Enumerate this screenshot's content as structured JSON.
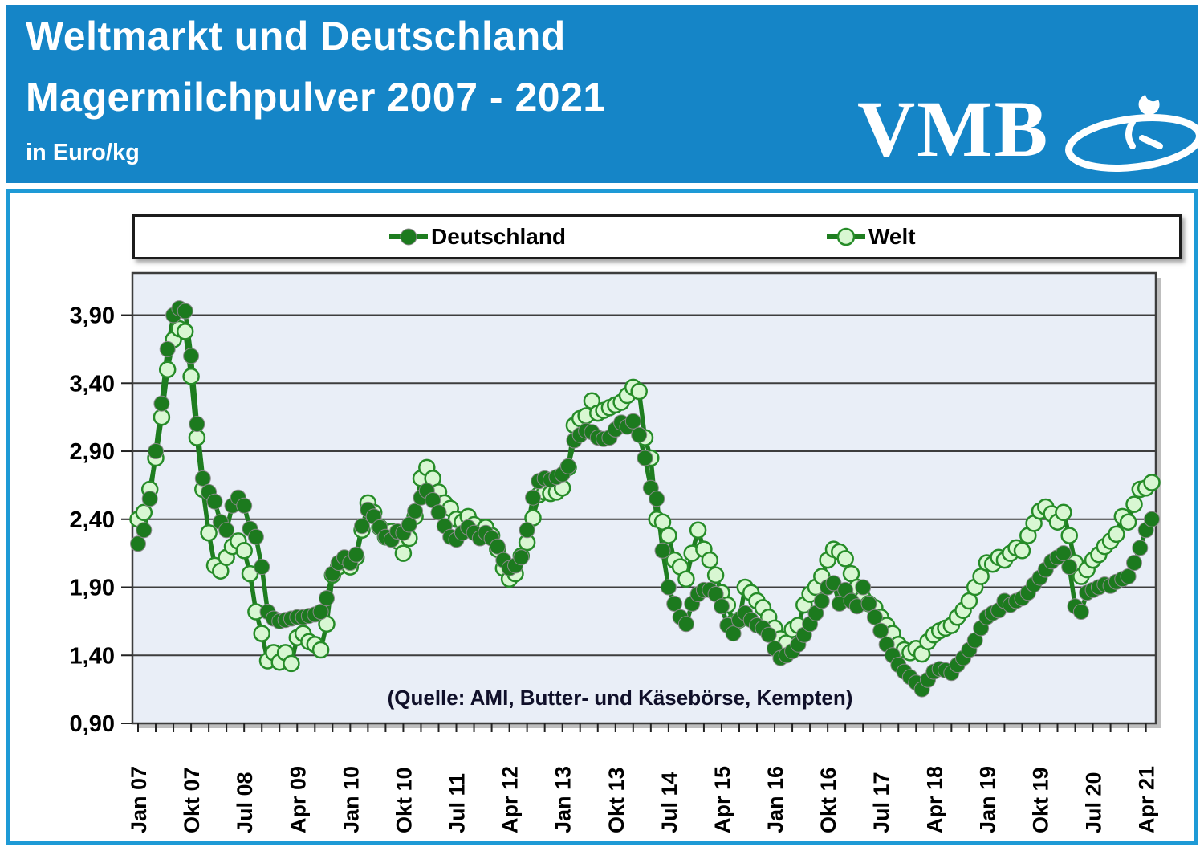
{
  "header": {
    "title_line1": "Weltmarkt und Deutschland",
    "title_line2": "Magermilchpulver 2007 - 2021",
    "unit_label": "in Euro/kg",
    "logo_text": "VMB",
    "header_color": "#1585c7",
    "frame_color": "#1e9ad6"
  },
  "legend": {
    "items": [
      {
        "label": "Deutschland",
        "marker": "filled-circle"
      },
      {
        "label": "Welt",
        "marker": "open-circle"
      }
    ]
  },
  "chart_data": {
    "type": "line",
    "title": "Weltmarkt und Deutschland Magermilchpulver 2007 - 2021",
    "ylabel": "Euro/kg",
    "source_note": "(Quelle: AMI, Butter- und Käsebörse, Kempten)",
    "grid": "horizontal",
    "legend_position": "top",
    "ylim": [
      0.9,
      4.21
    ],
    "yticks": [
      3.9,
      3.4,
      2.9,
      2.4,
      1.9,
      1.4,
      0.9
    ],
    "ytick_labels": [
      "3,90",
      "3,40",
      "2,90",
      "2,40",
      "1,90",
      "1,40",
      "0,90"
    ],
    "x_unit": "month",
    "x_start": "Jan 2007",
    "x_end": "Mai 2021",
    "xtick_label_every_months": 9,
    "minor_tick_every_months": 3,
    "xtick_labels": [
      "Jan 07",
      "Okt 07",
      "Jul 08",
      "Apr 09",
      "Jan 10",
      "Okt 10",
      "Jul 11",
      "Apr 12",
      "Jan 13",
      "Okt 13",
      "Jul 14",
      "Apr 15",
      "Jan 16",
      "Okt 16",
      "Jul 17",
      "Apr 18",
      "Jan 19",
      "Okt 19",
      "Jul 20",
      "Apr 21"
    ],
    "colors": {
      "line_green": "#1e7d20",
      "deutschland_fill": "#1c7a1e",
      "welt_fill": "#d8f7d2",
      "welt_stroke": "#268c28",
      "plot_bg": "#e9eef7",
      "gridline": "#3d3d3d"
    },
    "series": [
      {
        "name": "Deutschland",
        "marker": "filled-circle",
        "values": [
          2.22,
          2.32,
          2.55,
          2.9,
          3.25,
          3.65,
          3.9,
          3.95,
          3.93,
          3.6,
          3.1,
          2.7,
          2.6,
          2.53,
          2.38,
          2.32,
          2.5,
          2.56,
          2.5,
          2.33,
          2.27,
          2.05,
          1.72,
          1.67,
          1.65,
          1.66,
          1.67,
          1.68,
          1.68,
          1.69,
          1.7,
          1.72,
          1.82,
          2.0,
          2.08,
          2.12,
          2.08,
          2.14,
          2.35,
          2.47,
          2.42,
          2.34,
          2.27,
          2.25,
          2.31,
          2.3,
          2.36,
          2.46,
          2.56,
          2.61,
          2.54,
          2.45,
          2.35,
          2.27,
          2.25,
          2.3,
          2.34,
          2.3,
          2.26,
          2.3,
          2.26,
          2.2,
          2.1,
          2.04,
          2.06,
          2.12,
          2.32,
          2.56,
          2.68,
          2.7,
          2.69,
          2.71,
          2.73,
          2.79,
          2.98,
          3.02,
          3.05,
          3.04,
          3.0,
          2.99,
          3.0,
          3.06,
          3.11,
          3.08,
          3.12,
          3.02,
          2.85,
          2.63,
          2.55,
          2.17,
          1.9,
          1.78,
          1.68,
          1.63,
          1.78,
          1.85,
          1.88,
          1.88,
          1.85,
          1.76,
          1.62,
          1.56,
          1.66,
          1.71,
          1.66,
          1.62,
          1.6,
          1.55,
          1.45,
          1.38,
          1.4,
          1.43,
          1.48,
          1.55,
          1.63,
          1.71,
          1.8,
          1.9,
          1.93,
          1.78,
          1.88,
          1.8,
          1.76,
          1.9,
          1.78,
          1.68,
          1.58,
          1.48,
          1.4,
          1.33,
          1.28,
          1.24,
          1.2,
          1.15,
          1.22,
          1.28,
          1.3,
          1.29,
          1.27,
          1.33,
          1.38,
          1.44,
          1.51,
          1.6,
          1.68,
          1.71,
          1.73,
          1.8,
          1.77,
          1.8,
          1.82,
          1.86,
          1.92,
          1.97,
          2.03,
          2.09,
          2.12,
          2.15,
          2.05,
          1.76,
          1.72,
          1.86,
          1.88,
          1.9,
          1.92,
          1.91,
          1.94,
          1.96,
          1.98,
          2.08,
          2.19,
          2.32,
          2.4
        ]
      },
      {
        "name": "Welt",
        "marker": "open-circle",
        "values": [
          2.4,
          2.45,
          2.62,
          2.85,
          3.15,
          3.5,
          3.72,
          3.8,
          3.78,
          3.45,
          3.0,
          2.62,
          2.3,
          2.06,
          2.02,
          2.12,
          2.2,
          2.24,
          2.17,
          2.0,
          1.72,
          1.56,
          1.36,
          1.42,
          1.35,
          1.42,
          1.34,
          1.53,
          1.56,
          1.5,
          1.48,
          1.44,
          1.63,
          1.99,
          2.05,
          2.1,
          2.05,
          2.12,
          2.32,
          2.52,
          2.45,
          2.34,
          2.27,
          2.31,
          2.24,
          2.15,
          2.26,
          2.42,
          2.7,
          2.78,
          2.7,
          2.6,
          2.52,
          2.48,
          2.4,
          2.38,
          2.42,
          2.36,
          2.3,
          2.34,
          2.28,
          2.18,
          2.04,
          1.96,
          2.0,
          2.13,
          2.23,
          2.41,
          2.58,
          2.6,
          2.59,
          2.6,
          2.63,
          2.78,
          3.09,
          3.14,
          3.16,
          3.27,
          3.18,
          3.2,
          3.22,
          3.24,
          3.26,
          3.31,
          3.37,
          3.34,
          3.0,
          2.85,
          2.4,
          2.38,
          2.28,
          2.1,
          2.05,
          1.96,
          2.15,
          2.32,
          2.18,
          2.1,
          1.99,
          1.86,
          1.77,
          1.64,
          1.66,
          1.9,
          1.86,
          1.8,
          1.75,
          1.68,
          1.6,
          1.52,
          1.49,
          1.59,
          1.62,
          1.77,
          1.85,
          1.9,
          1.98,
          2.1,
          2.18,
          2.16,
          2.11,
          2.0,
          1.9,
          1.82,
          1.78,
          1.75,
          1.68,
          1.62,
          1.56,
          1.48,
          1.44,
          1.42,
          1.45,
          1.41,
          1.5,
          1.55,
          1.58,
          1.6,
          1.62,
          1.68,
          1.73,
          1.8,
          1.9,
          1.98,
          2.08,
          2.07,
          2.12,
          2.1,
          2.15,
          2.19,
          2.17,
          2.28,
          2.37,
          2.46,
          2.49,
          2.44,
          2.38,
          2.45,
          2.28,
          2.08,
          1.98,
          2.03,
          2.1,
          2.14,
          2.2,
          2.24,
          2.29,
          2.42,
          2.38,
          2.51,
          2.62,
          2.63,
          2.67
        ]
      }
    ]
  }
}
